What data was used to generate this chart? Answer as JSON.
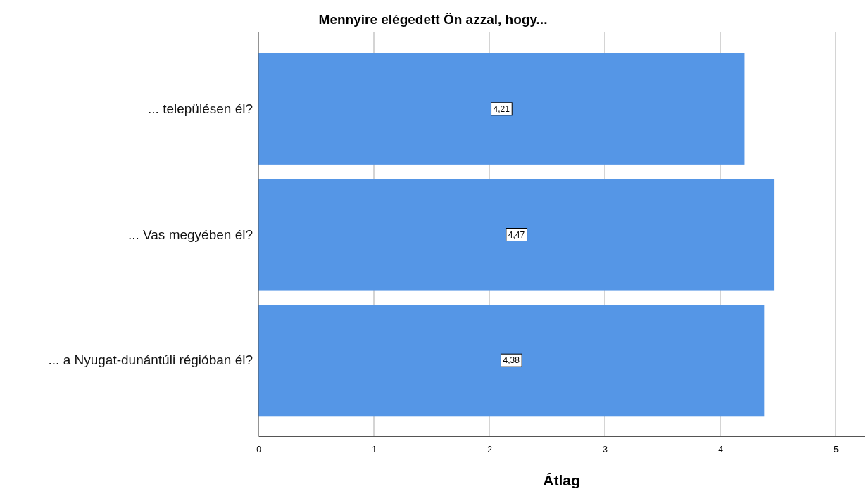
{
  "chart_data": {
    "type": "bar",
    "orientation": "horizontal",
    "title": "Mennyire elégedett Ön azzal, hogy...",
    "xlabel": "Átlag",
    "categories": [
      "... településen él?",
      "... Vas megyében él?",
      "... a Nyugat-dunántúli régióban él?"
    ],
    "values": [
      4.21,
      4.47,
      4.38
    ],
    "value_labels": [
      "4,21",
      "4,47",
      "4,38"
    ],
    "color": "#5596e6",
    "xlim": [
      0,
      5.25
    ],
    "xticks": [
      0,
      1,
      2,
      3,
      4,
      5
    ],
    "grid": "x"
  }
}
